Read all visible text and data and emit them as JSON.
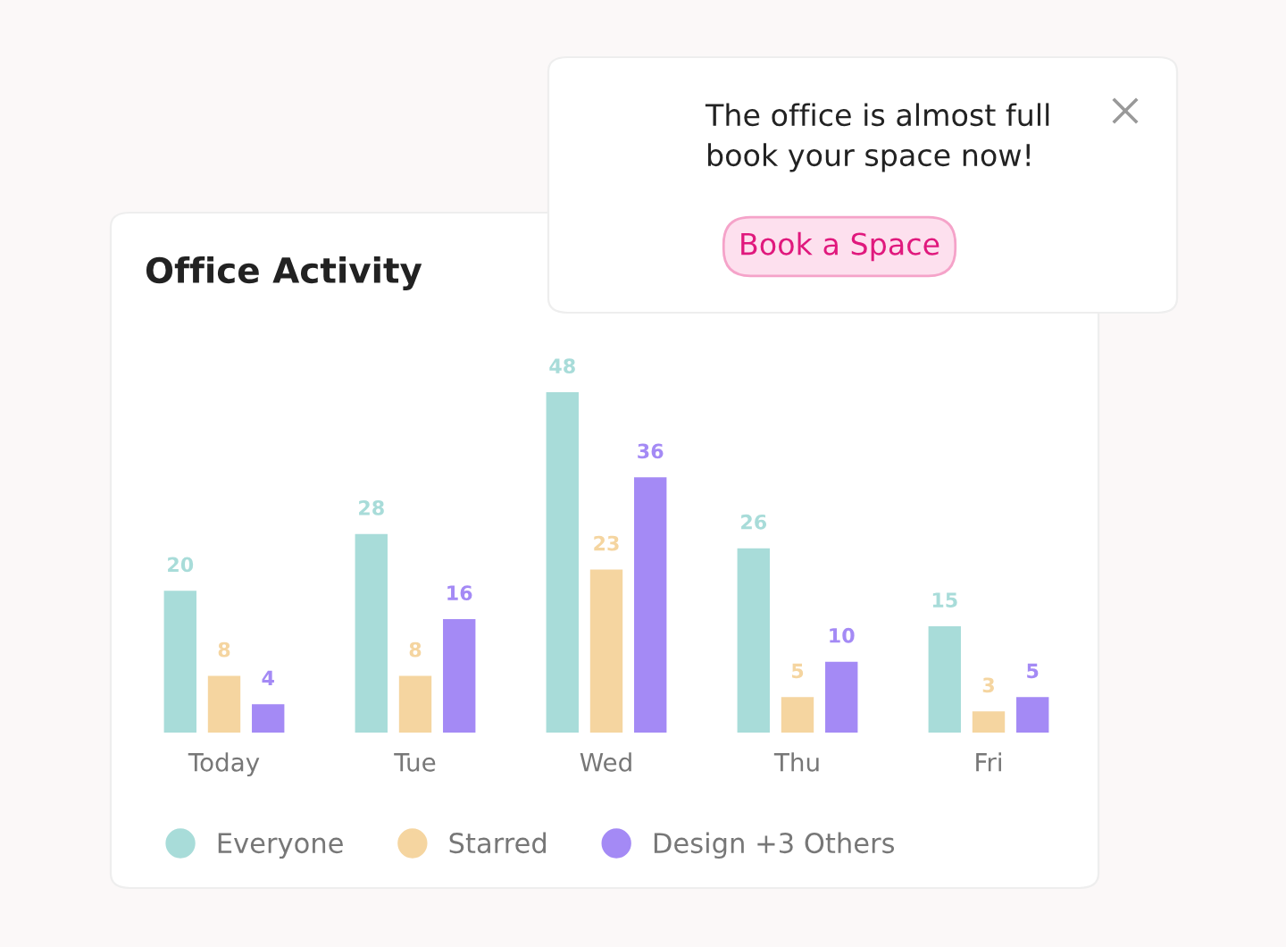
{
  "chart_data": {
    "type": "bar",
    "title": "Office Activity",
    "categories": [
      "Today",
      "Tue",
      "Wed",
      "Thu",
      "Fri"
    ],
    "series": [
      {
        "name": "Everyone",
        "color": "#a8dcd9",
        "values": [
          20,
          28,
          48,
          26,
          15
        ]
      },
      {
        "name": "Starred",
        "color": "#f5d5a0",
        "values": [
          8,
          8,
          23,
          5,
          3
        ]
      },
      {
        "name": "Design +3 Others",
        "color": "#a48af5",
        "values": [
          4,
          16,
          36,
          10,
          5
        ]
      }
    ],
    "data_labels": true,
    "legend": "bottom",
    "grid": false,
    "annotations": [
      "The office is almost full\nbook your space now!",
      "Book a Space"
    ]
  }
}
